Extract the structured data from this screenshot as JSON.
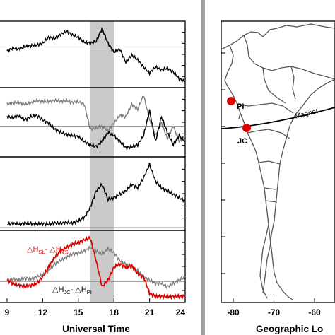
{
  "chart_data": [
    {
      "type": "line",
      "panels": [
        {
          "series": [
            {
              "name": "",
              "color": "#000000",
              "x": [
                9.0,
                9.5,
                10.0,
                10.5,
                11.0,
                11.5,
                12.0,
                12.5,
                13.0,
                13.5,
                14.0,
                14.5,
                15.0,
                15.5,
                16.0,
                16.5,
                17.0,
                17.5,
                18.0,
                18.5,
                19.0,
                19.5,
                20.0,
                20.5,
                21.0,
                21.5,
                22.0,
                22.5,
                23.0,
                23.5,
                24.0
              ],
              "y": [
                0.57,
                0.62,
                0.6,
                0.64,
                0.66,
                0.67,
                0.7,
                0.8,
                0.78,
                0.85,
                0.9,
                0.84,
                0.8,
                0.72,
                0.7,
                0.73,
                0.95,
                0.7,
                0.55,
                0.6,
                0.38,
                0.5,
                0.42,
                0.3,
                0.2,
                0.3,
                0.25,
                0.28,
                0.22,
                0.1,
                0.05
              ]
            }
          ],
          "ref_y": 0.6
        },
        {
          "series": [
            {
              "name": "",
              "color": "#7f7f7f",
              "x": [
                9.0,
                9.5,
                10.0,
                10.5,
                11.0,
                11.5,
                12.0,
                12.5,
                13.0,
                13.5,
                14.0,
                14.5,
                15.0,
                15.5,
                16.0,
                16.5,
                17.0,
                17.5,
                18.0,
                18.5,
                19.0,
                19.5,
                20.0,
                20.5,
                21.0,
                21.5,
                22.0,
                22.5,
                23.0,
                23.5,
                24.0
              ],
              "y": [
                0.8,
                0.82,
                0.83,
                0.8,
                0.82,
                0.86,
                0.85,
                0.84,
                0.86,
                0.85,
                0.86,
                0.83,
                0.84,
                0.8,
                0.4,
                0.42,
                0.45,
                0.38,
                0.5,
                0.62,
                0.6,
                0.8,
                0.72,
                0.95,
                0.55,
                0.3,
                0.5,
                0.25,
                0.45,
                0.2,
                0.3
              ]
            },
            {
              "name": "",
              "color": "#000000",
              "x": [
                9.0,
                9.5,
                10.0,
                10.5,
                11.0,
                11.5,
                12.0,
                12.5,
                13.0,
                13.5,
                14.0,
                14.5,
                15.0,
                15.5,
                16.0,
                16.5,
                17.0,
                17.5,
                18.0,
                18.5,
                19.0,
                19.5,
                20.0,
                20.5,
                21.0,
                21.5,
                22.0,
                22.5,
                23.0,
                23.5,
                24.0
              ],
              "y": [
                0.6,
                0.58,
                0.62,
                0.55,
                0.6,
                0.62,
                0.55,
                0.5,
                0.4,
                0.35,
                0.32,
                0.3,
                0.28,
                0.2,
                0.15,
                0.12,
                0.2,
                0.35,
                0.3,
                0.2,
                0.1,
                0.12,
                0.15,
                0.3,
                0.7,
                0.2,
                0.6,
                0.35,
                0.15,
                0.3,
                0.2
              ]
            }
          ],
          "ref_y": 0.45
        },
        {
          "series": [
            {
              "name": "",
              "color": "#000000",
              "x": [
                9.0,
                9.5,
                10.0,
                10.5,
                11.0,
                11.5,
                12.0,
                12.5,
                13.0,
                13.5,
                14.0,
                14.5,
                15.0,
                15.5,
                16.0,
                16.5,
                17.0,
                17.5,
                18.0,
                18.5,
                19.0,
                19.5,
                20.0,
                20.5,
                21.0,
                21.5,
                22.0,
                22.5,
                23.0,
                23.5,
                24.0
              ],
              "y": [
                0.05,
                0.06,
                0.05,
                0.07,
                0.06,
                0.05,
                0.06,
                0.05,
                0.07,
                0.06,
                0.08,
                0.07,
                0.1,
                0.15,
                0.3,
                0.55,
                0.65,
                0.42,
                0.45,
                0.5,
                0.55,
                0.65,
                0.6,
                0.75,
                0.95,
                0.7,
                0.6,
                0.55,
                0.5,
                0.45,
                0.4
              ]
            }
          ],
          "ref_y": 0.0
        },
        {
          "series": [
            {
              "name": "",
              "color": "#7f7f7f",
              "x": [
                9.0,
                9.5,
                10.0,
                10.5,
                11.0,
                11.5,
                12.0,
                12.5,
                13.0,
                13.5,
                14.0,
                14.5,
                15.0,
                15.5,
                16.0,
                16.5,
                17.0,
                17.5,
                18.0,
                18.5,
                19.0,
                19.5,
                20.0,
                20.5,
                21.0,
                21.5,
                22.0,
                22.5,
                23.0,
                23.5,
                24.0
              ],
              "y": [
                0.3,
                0.32,
                0.3,
                0.33,
                0.32,
                0.35,
                0.38,
                0.45,
                0.55,
                0.6,
                0.65,
                0.7,
                0.72,
                0.75,
                0.8,
                0.75,
                0.7,
                0.78,
                0.72,
                0.6,
                0.55,
                0.5,
                0.45,
                0.35,
                0.3,
                0.25,
                0.25,
                0.2,
                0.25,
                0.3,
                0.35
              ]
            },
            {
              "name": "",
              "color": "#e00000",
              "x": [
                9.0,
                9.5,
                10.0,
                10.5,
                11.0,
                11.5,
                12.0,
                12.5,
                13.0,
                13.5,
                14.0,
                14.5,
                15.0,
                15.5,
                16.0,
                16.5,
                17.0,
                17.5,
                18.0,
                18.5,
                19.0,
                19.5,
                20.0,
                20.5,
                21.0,
                21.5,
                22.0,
                22.5,
                23.0,
                23.5,
                24.0
              ],
              "y": [
                0.3,
                0.25,
                0.22,
                0.2,
                0.22,
                0.25,
                0.35,
                0.5,
                0.65,
                0.75,
                0.8,
                0.85,
                0.88,
                0.92,
                0.95,
                0.6,
                0.2,
                0.3,
                0.5,
                0.55,
                0.5,
                0.52,
                0.4,
                0.35,
                0.1,
                0.05,
                0.05,
                0.05,
                0.05,
                0.05,
                0.05
              ]
            }
          ],
          "ref_y": 0.28
        }
      ],
      "x_ticks": [
        9,
        12,
        15,
        18,
        21,
        24
      ],
      "xlabel": "Universal Time",
      "xlim": [
        9,
        24
      ],
      "shaded_x": [
        16,
        18
      ],
      "annotations": [
        {
          "text": "△H",
          "sub1": "SL",
          "mid": "- △H",
          "sub2": "VS",
          "color": "#e00000"
        },
        {
          "text": "△H",
          "sub1": "JC",
          "mid": "- △H",
          "sub2": "PI",
          "color": "#000000"
        }
      ],
      "grid": false
    },
    {
      "type": "map",
      "x_ticks": [
        -80,
        -70,
        -60
      ],
      "xlabel": "Geographic Lo",
      "sites": [
        {
          "label": "PI",
          "color": "#e00000"
        },
        {
          "label": "JC",
          "color": "#e00000"
        }
      ],
      "equator_label": "Magnet"
    }
  ],
  "colors": {
    "shade": "#bdbdbd",
    "divider": "#a0a0a0",
    "accent": "#e00000"
  }
}
